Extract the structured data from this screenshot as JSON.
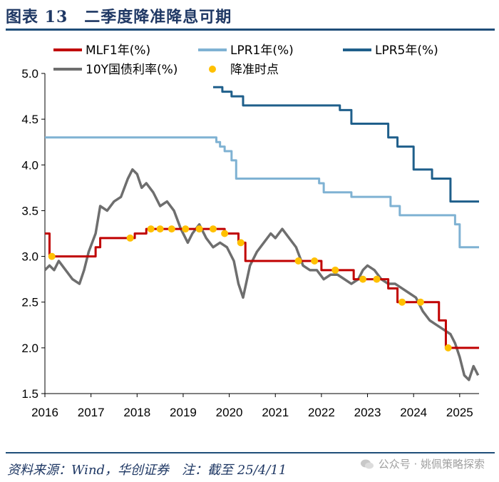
{
  "header": {
    "title": "图表 13　二季度降准降息可期"
  },
  "footer": {
    "source": "资料来源：Wind，华创证券　注：截至 25/4/11",
    "watermark": "公众号 · 姚佩策略探索"
  },
  "colors": {
    "mlf": "#c00000",
    "lpr1": "#7fb2d3",
    "lpr5": "#1f5f8b",
    "bond": "#6e6e6e",
    "dot": "#ffc000",
    "title": "#1f3864"
  },
  "chart_data": {
    "type": "line",
    "xlim": [
      2016,
      2025.42
    ],
    "ylim": [
      1.5,
      5.0
    ],
    "x_ticks": [
      "2016",
      "2017",
      "2018",
      "2019",
      "2020",
      "2021",
      "2022",
      "2023",
      "2024",
      "2025"
    ],
    "y_ticks": [
      "5.0",
      "4.5",
      "4.0",
      "3.5",
      "3.0",
      "2.5",
      "2.0",
      "1.5"
    ],
    "series": [
      {
        "name": "MLF1年(%)",
        "kind": "step",
        "x": [
          2016.0,
          2016.1,
          2016.9,
          2017.1,
          2017.2,
          2017.95,
          2018.2,
          2019.3,
          2019.9,
          2020.2,
          2020.35,
          2022.0,
          2022.6,
          2022.7,
          2023.45,
          2023.65,
          2024.1,
          2024.55,
          2024.7,
          2025.42
        ],
        "y": [
          3.25,
          3.0,
          3.0,
          3.1,
          3.2,
          3.25,
          3.3,
          3.3,
          3.25,
          3.15,
          2.95,
          2.85,
          2.85,
          2.75,
          2.65,
          2.5,
          2.5,
          2.3,
          2.0,
          2.0
        ]
      },
      {
        "name": "LPR1年(%)",
        "kind": "step",
        "x": [
          2016.0,
          2019.6,
          2019.72,
          2019.8,
          2019.9,
          2020.05,
          2020.15,
          2020.3,
          2021.95,
          2022.05,
          2022.65,
          2023.5,
          2023.7,
          2024.9,
          2025.0,
          2025.42
        ],
        "y": [
          4.3,
          4.3,
          4.25,
          4.2,
          4.15,
          4.05,
          3.85,
          3.85,
          3.8,
          3.7,
          3.65,
          3.55,
          3.45,
          3.35,
          3.1,
          3.1
        ],
        "pre_period": {
          "y": 4.3
        }
      },
      {
        "name": "LPR5年(%)",
        "kind": "step",
        "x": [
          2019.65,
          2019.85,
          2020.05,
          2020.3,
          2022.05,
          2022.4,
          2022.65,
          2023.45,
          2023.65,
          2024.0,
          2024.4,
          2024.8,
          2025.42
        ],
        "y": [
          4.85,
          4.8,
          4.75,
          4.65,
          4.65,
          4.6,
          4.45,
          4.3,
          4.2,
          3.95,
          3.85,
          3.6,
          3.6
        ]
      },
      {
        "name": "10Y国债利率(%)",
        "kind": "line",
        "x": [
          2016.0,
          2016.1,
          2016.2,
          2016.3,
          2016.45,
          2016.6,
          2016.75,
          2016.85,
          2016.95,
          2017.1,
          2017.2,
          2017.35,
          2017.5,
          2017.65,
          2017.8,
          2017.9,
          2018.0,
          2018.1,
          2018.2,
          2018.35,
          2018.5,
          2018.65,
          2018.8,
          2018.95,
          2019.1,
          2019.2,
          2019.35,
          2019.5,
          2019.65,
          2019.8,
          2019.95,
          2020.1,
          2020.2,
          2020.3,
          2020.45,
          2020.6,
          2020.75,
          2020.9,
          2021.0,
          2021.15,
          2021.3,
          2021.45,
          2021.6,
          2021.75,
          2021.9,
          2022.05,
          2022.2,
          2022.35,
          2022.5,
          2022.65,
          2022.8,
          2022.9,
          2023.0,
          2023.15,
          2023.3,
          2023.45,
          2023.6,
          2023.75,
          2023.9,
          2024.05,
          2024.2,
          2024.35,
          2024.5,
          2024.65,
          2024.8,
          2024.9,
          2025.0,
          2025.1,
          2025.2,
          2025.3,
          2025.4
        ],
        "y": [
          2.85,
          2.9,
          2.85,
          2.95,
          2.85,
          2.75,
          2.7,
          2.85,
          3.05,
          3.25,
          3.55,
          3.5,
          3.6,
          3.65,
          3.85,
          3.95,
          3.9,
          3.75,
          3.8,
          3.7,
          3.55,
          3.6,
          3.5,
          3.3,
          3.15,
          3.25,
          3.35,
          3.2,
          3.1,
          3.15,
          3.1,
          2.95,
          2.7,
          2.55,
          2.9,
          3.05,
          3.15,
          3.25,
          3.2,
          3.3,
          3.2,
          3.1,
          2.9,
          2.85,
          2.85,
          2.75,
          2.8,
          2.8,
          2.75,
          2.7,
          2.75,
          2.85,
          2.9,
          2.85,
          2.75,
          2.7,
          2.7,
          2.65,
          2.6,
          2.55,
          2.4,
          2.3,
          2.25,
          2.2,
          2.15,
          2.05,
          1.9,
          1.7,
          1.65,
          1.8,
          1.7
        ]
      },
      {
        "name": "降准时点",
        "kind": "dots",
        "x": [
          2016.15,
          2017.85,
          2018.3,
          2018.5,
          2018.75,
          2019.05,
          2019.35,
          2019.65,
          2019.9,
          2020.25,
          2021.5,
          2021.85,
          2022.3,
          2022.9,
          2023.2,
          2023.75,
          2024.15,
          2024.75
        ],
        "y": [
          3.0,
          3.2,
          3.3,
          3.3,
          3.3,
          3.3,
          3.3,
          3.3,
          3.25,
          3.15,
          2.95,
          2.95,
          2.85,
          2.75,
          2.75,
          2.5,
          2.5,
          2.0
        ]
      }
    ],
    "legend": [
      {
        "label": "MLF1年(%)",
        "kind": "line",
        "series": 0
      },
      {
        "label": "LPR1年(%)",
        "kind": "line",
        "series": 1
      },
      {
        "label": "LPR5年(%)",
        "kind": "line",
        "series": 2
      },
      {
        "label": "10Y国债利率(%)",
        "kind": "line",
        "series": 3
      },
      {
        "label": "降准时点",
        "kind": "dot",
        "series": 4
      }
    ],
    "grid": false,
    "legend_position": "top"
  }
}
